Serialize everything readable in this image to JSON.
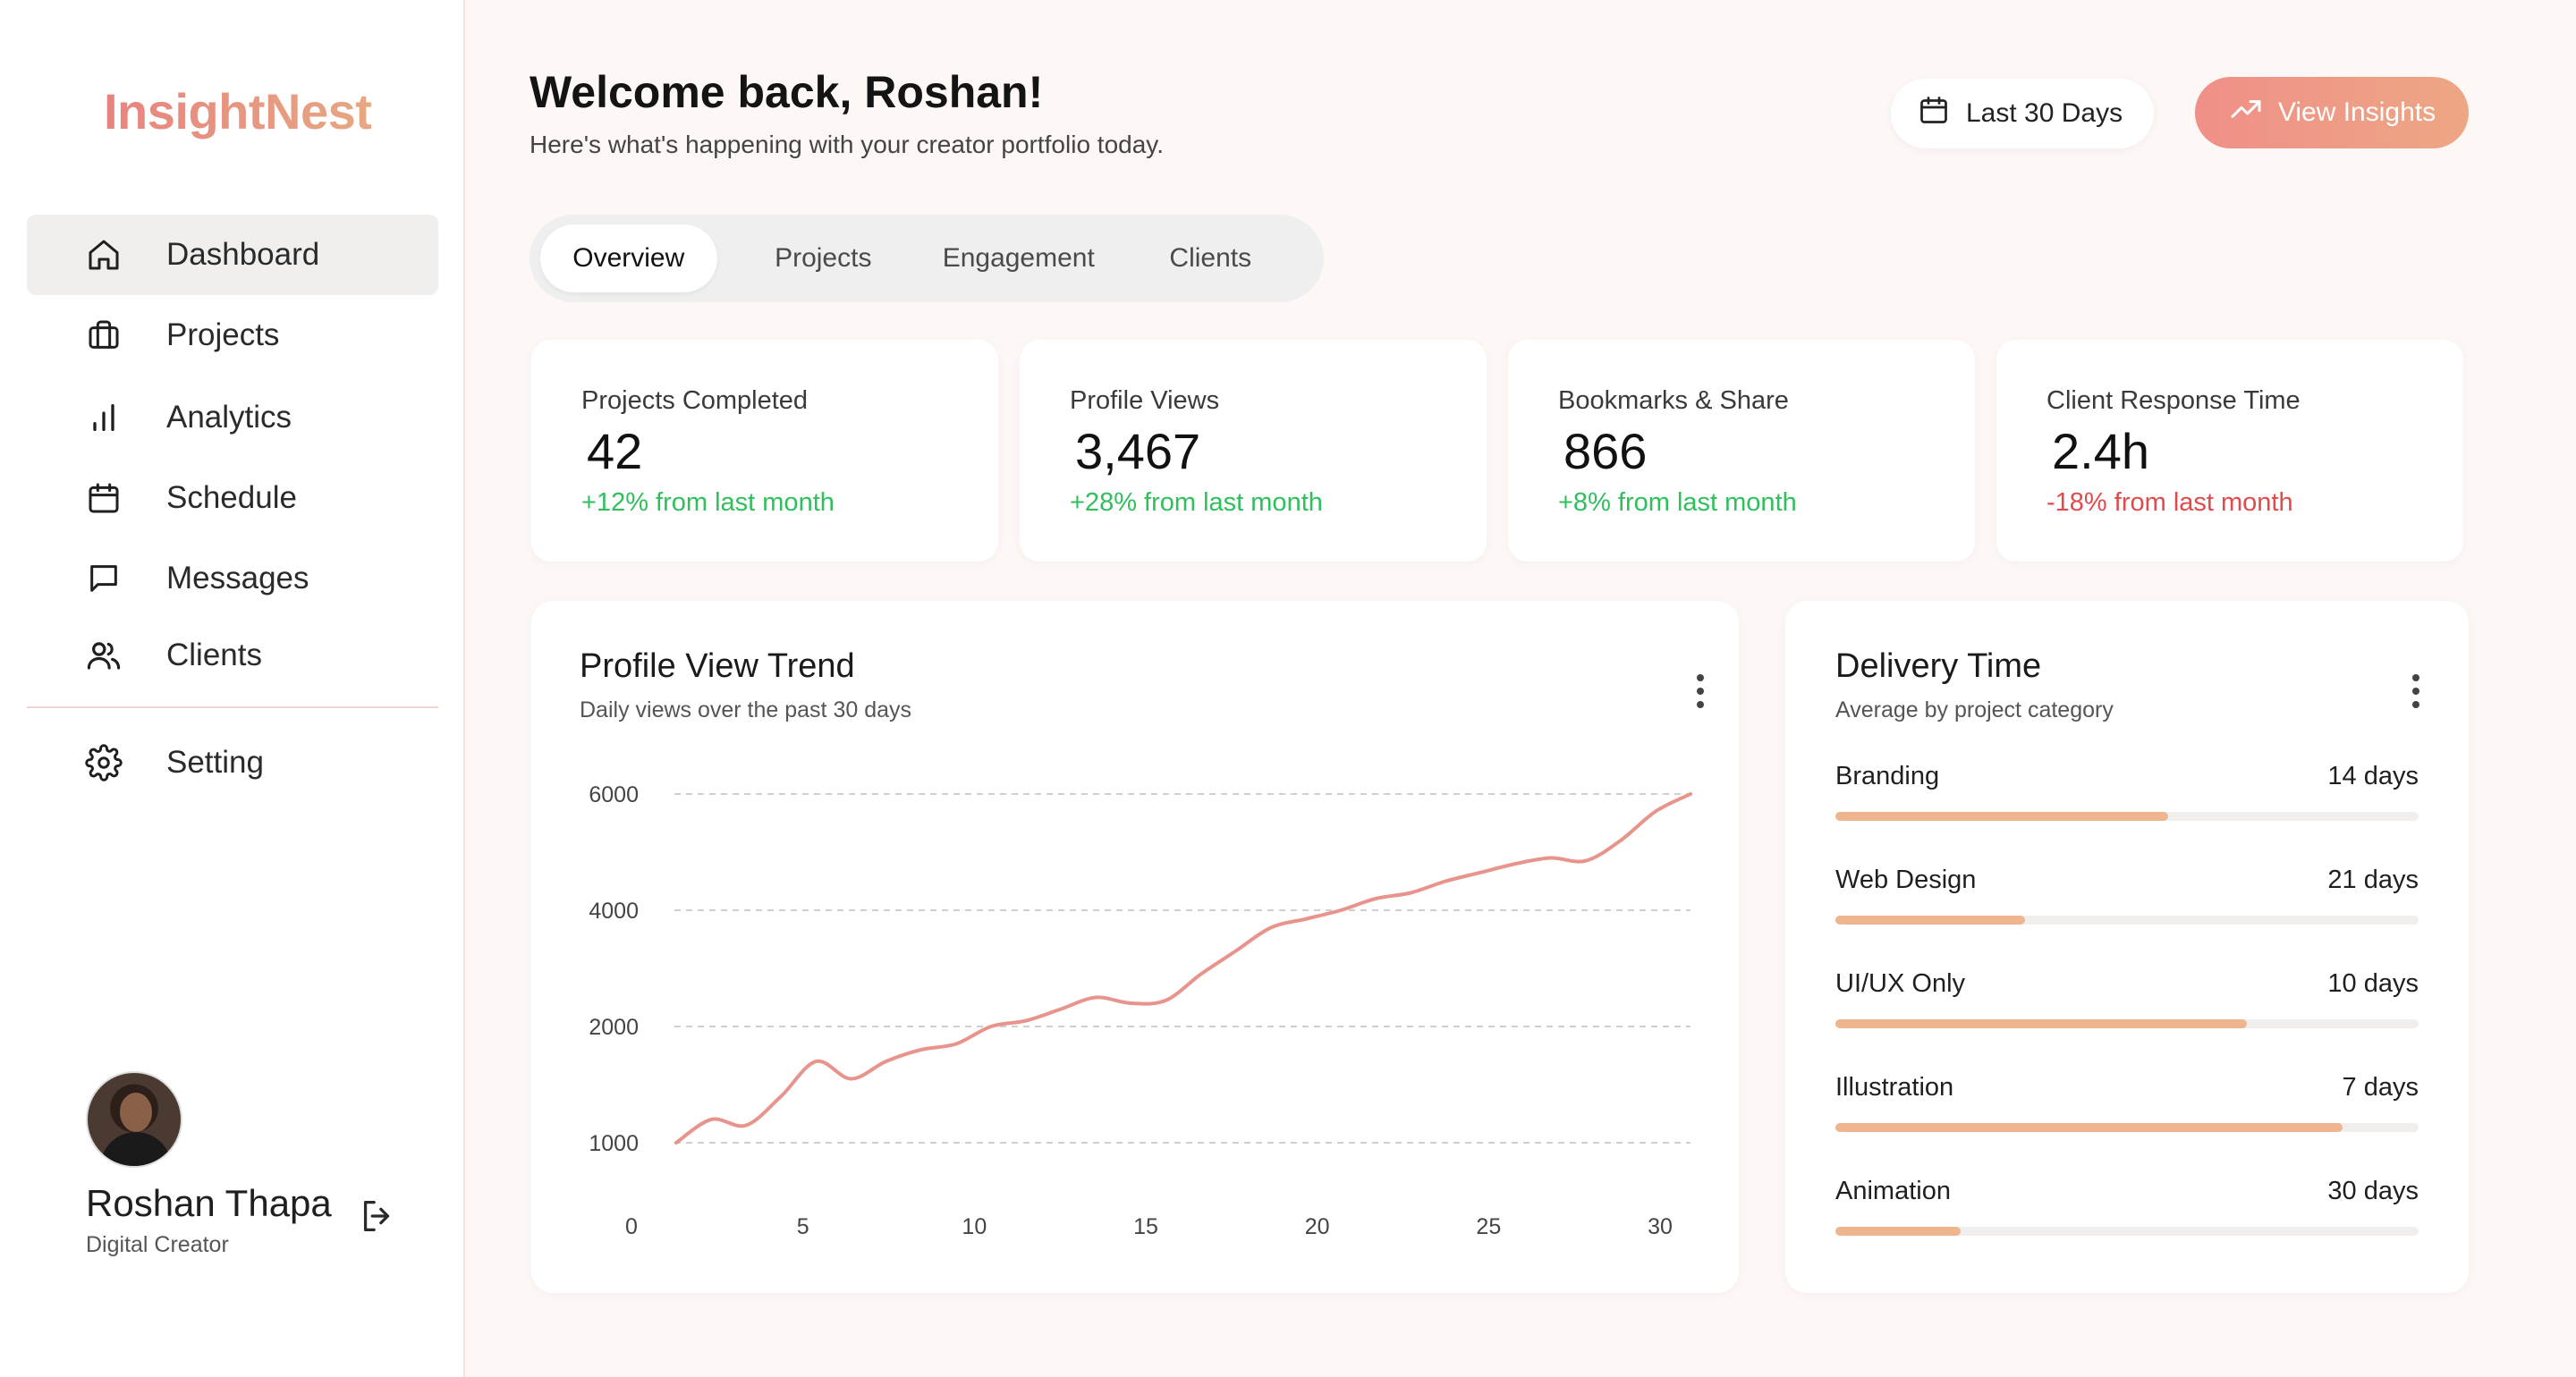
{
  "app": {
    "name": "InsightNest"
  },
  "sidebar": {
    "items": [
      {
        "label": "Dashboard",
        "icon": "home-icon",
        "active": true
      },
      {
        "label": "Projects",
        "icon": "briefcase-icon"
      },
      {
        "label": "Analytics",
        "icon": "bar-chart-icon"
      },
      {
        "label": "Schedule",
        "icon": "calendar-icon"
      },
      {
        "label": "Messages",
        "icon": "message-icon"
      },
      {
        "label": "Clients",
        "icon": "users-icon"
      }
    ],
    "settings": {
      "label": "Setting",
      "icon": "gear-icon"
    },
    "profile": {
      "name": "Roshan Thapa",
      "role": "Digital Creator"
    }
  },
  "header": {
    "title": "Welcome back, Roshan!",
    "subtitle": "Here's what's happening with your creator portfolio today.",
    "date_range_label": "Last 30 Days",
    "insights_label": "View Insights"
  },
  "tabs": [
    {
      "label": "Overview",
      "active": true
    },
    {
      "label": "Projects"
    },
    {
      "label": "Engagement"
    },
    {
      "label": "Clients"
    }
  ],
  "stats": [
    {
      "label": "Projects Completed",
      "value": "42",
      "delta": "+12% from last month",
      "trend": "up"
    },
    {
      "label": "Profile Views",
      "value": "3,467",
      "delta": "+28% from last month",
      "trend": "up"
    },
    {
      "label": "Bookmarks & Share",
      "value": "866",
      "delta": "+8% from last month",
      "trend": "up"
    },
    {
      "label": "Client Response Time",
      "value": "2.4h",
      "delta": "-18% from last month",
      "trend": "down"
    }
  ],
  "trend_card": {
    "title": "Profile View Trend",
    "subtitle": "Daily views over the past 30 days"
  },
  "chart_data": {
    "type": "line",
    "title": "Profile View Trend",
    "subtitle": "Daily views over the past 30 days",
    "x": [
      1,
      2,
      3,
      4,
      5,
      6,
      7,
      8,
      9,
      10,
      11,
      12,
      13,
      14,
      15,
      16,
      17,
      18,
      19,
      20,
      21,
      22,
      23,
      24,
      25,
      26,
      27,
      28,
      29,
      30
    ],
    "values": [
      1000,
      1200,
      1150,
      1400,
      1700,
      1550,
      1700,
      1800,
      1850,
      2000,
      2100,
      2300,
      2500,
      2400,
      2450,
      2900,
      3300,
      3700,
      3850,
      4000,
      4200,
      4300,
      4500,
      4650,
      4800,
      4900,
      4850,
      5200,
      5700,
      6000
    ],
    "y_ticks": [
      6000,
      4000,
      2000,
      1000
    ],
    "x_ticks": [
      0,
      5,
      10,
      15,
      20,
      25,
      30
    ],
    "line_color": "#e8938c",
    "grid": "dashed-horizontal"
  },
  "delivery_card": {
    "title": "Delivery Time",
    "subtitle": "Average by project category",
    "bar_color": "#eeb58f",
    "rows": [
      {
        "name": "Branding",
        "value": "14 days",
        "fill": 0.57
      },
      {
        "name": "Web Design",
        "value": "21 days",
        "fill": 0.325
      },
      {
        "name": "UI/UX Only",
        "value": "10 days",
        "fill": 0.705
      },
      {
        "name": "Illustration",
        "value": "7 days",
        "fill": 0.87
      },
      {
        "name": "Animation",
        "value": "30 days",
        "fill": 0.215
      }
    ]
  }
}
